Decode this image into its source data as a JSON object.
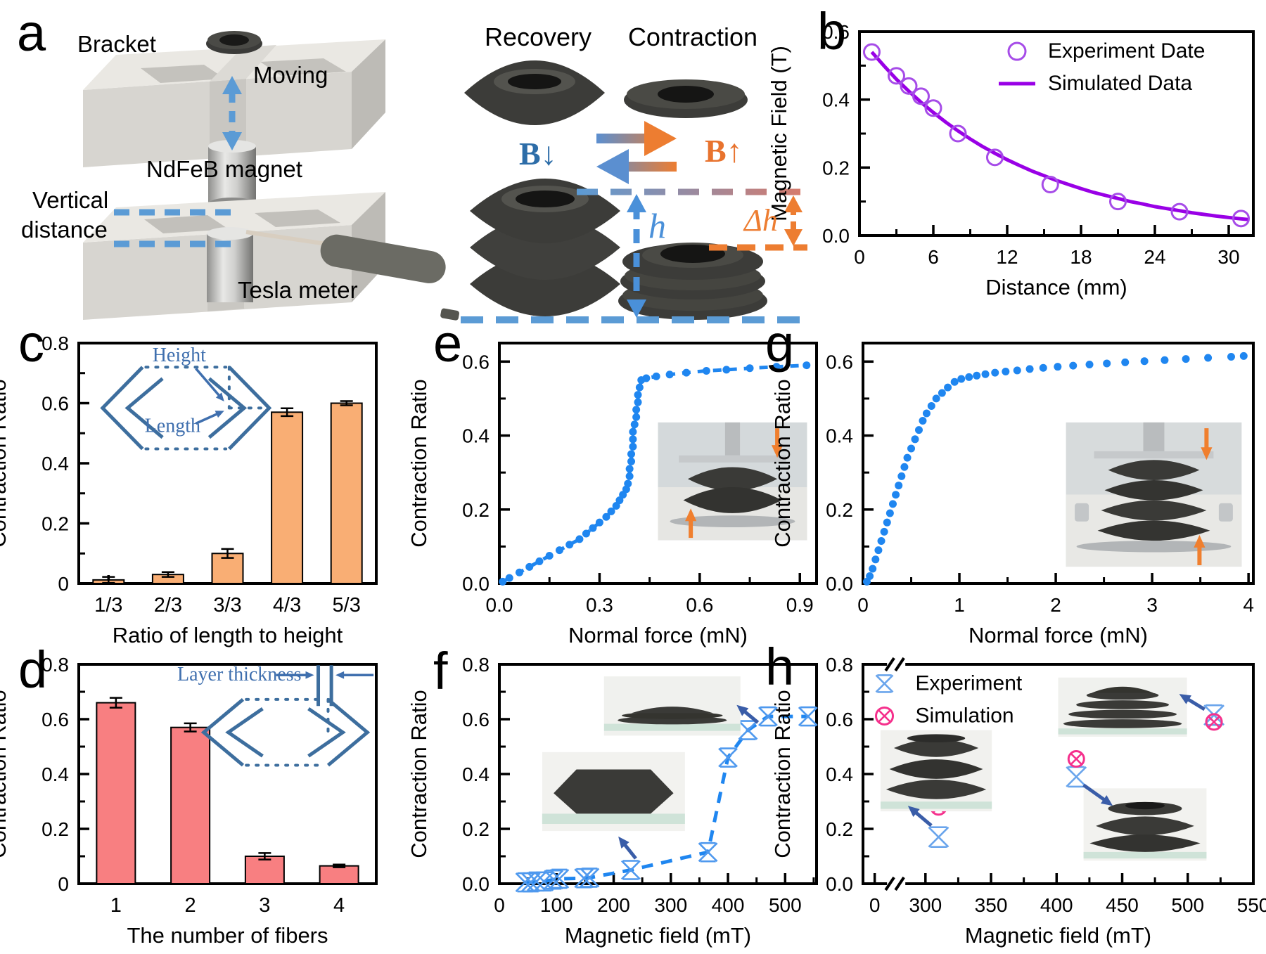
{
  "figure": {
    "letters": {
      "a": "a",
      "b": "b",
      "c": "c",
      "d": "d",
      "e": "e",
      "f": "f",
      "g": "g",
      "h": "h"
    },
    "panel_a": {
      "bracket": "Bracket",
      "moving": "Moving",
      "magnet": "NdFeB magnet",
      "vertical_line1": "Vertical",
      "vertical_line2": "distance",
      "tesla": "Tesla meter",
      "recovery": "Recovery",
      "contraction": "Contraction",
      "b_down": "B↓",
      "b_up": "B↑",
      "h": "h",
      "delta_h": "Δh"
    },
    "colors": {
      "blue_dash": "#5b9bd5",
      "orange": "#ed7d31",
      "purple_line": "#9900e6",
      "scatter_blue": "#1f86f0",
      "experiment_blue": "#6aa5ec",
      "simulation_pink": "#f5308c",
      "bar_orange": "#f9ae74",
      "bar_red": "#f87f81",
      "inset_steel_blue": "#3d6e9e"
    }
  },
  "chart_data": [
    {
      "id": "b",
      "type": "line",
      "xlabel": "Distance (mm)",
      "ylabel": "Magnetic Field (T)",
      "xlim": [
        0,
        32
      ],
      "ylim": [
        0,
        0.6
      ],
      "xticks": [
        0,
        6,
        12,
        18,
        24,
        30
      ],
      "xtick_labels": [
        "0",
        "6",
        "12",
        "18",
        "24",
        "30"
      ],
      "xminor": [
        3,
        9,
        15,
        21,
        27
      ],
      "yticks": [
        0,
        0.2,
        0.4,
        0.6
      ],
      "ytick_labels": [
        "0.0",
        "0.2",
        "0.4",
        "0.6"
      ],
      "yminor": [
        0.1,
        0.3,
        0.5
      ],
      "legend": {
        "fx": 0.4,
        "fy": 0.045,
        "items": [
          {
            "marker": "circle-open",
            "color": "#a64ce8",
            "label": "Experiment Date"
          },
          {
            "marker": "line",
            "color": "#9900e6",
            "label": "Simulated Data"
          }
        ]
      },
      "series": [
        {
          "name": "Simulated Data",
          "kind": "line",
          "color": "#9900e6",
          "width": 5,
          "x": [
            1,
            2,
            3,
            4,
            5,
            6,
            7,
            8,
            9,
            10,
            11,
            12,
            13,
            14,
            15,
            16,
            17,
            18,
            19,
            20,
            21,
            22,
            23,
            24,
            25,
            26,
            27,
            28,
            29,
            30,
            31,
            31.6
          ],
          "y": [
            0.54,
            0.499,
            0.46,
            0.425,
            0.392,
            0.362,
            0.334,
            0.308,
            0.284,
            0.262,
            0.242,
            0.223,
            0.206,
            0.19,
            0.176,
            0.162,
            0.15,
            0.138,
            0.127,
            0.118,
            0.109,
            0.1,
            0.093,
            0.085,
            0.079,
            0.073,
            0.067,
            0.062,
            0.057,
            0.053,
            0.049,
            0.047
          ]
        },
        {
          "name": "Experiment Date",
          "kind": "scatter",
          "marker": "circle-open",
          "color": "#a64ce8",
          "size": 11,
          "x": [
            1,
            3,
            4,
            5,
            6,
            8,
            11,
            15.5,
            21,
            26,
            31
          ],
          "y": [
            0.54,
            0.47,
            0.44,
            0.41,
            0.375,
            0.3,
            0.23,
            0.15,
            0.1,
            0.07,
            0.05
          ]
        }
      ]
    },
    {
      "id": "c",
      "type": "bar",
      "xlabel": "Ratio of length to height",
      "ylabel": "Contraction Ratio",
      "ylim": [
        0,
        0.8
      ],
      "yticks": [
        0,
        0.2,
        0.4,
        0.6,
        0.8
      ],
      "ytick_labels": [
        "0",
        "0.2",
        "0.4",
        "0.6",
        "0.8"
      ],
      "yminor": [
        0.1,
        0.3,
        0.5,
        0.7
      ],
      "categories": [
        "1/3",
        "2/3",
        "3/3",
        "4/3",
        "5/3"
      ],
      "values": [
        0.012,
        0.03,
        0.1,
        0.57,
        0.6
      ],
      "errors": [
        0.01,
        0.008,
        0.015,
        0.013,
        0.007
      ],
      "bar_color": "#f9ae74",
      "inset": {
        "height_label": "Height",
        "length_label": "Length"
      }
    },
    {
      "id": "d",
      "type": "bar",
      "xlabel": "The number of fibers",
      "ylabel": "Contraction Ratio",
      "ylim": [
        0,
        0.8
      ],
      "yticks": [
        0,
        0.2,
        0.4,
        0.6,
        0.8
      ],
      "ytick_labels": [
        "0",
        "0.2",
        "0.4",
        "0.6",
        "0.8"
      ],
      "yminor": [
        0.1,
        0.3,
        0.5,
        0.7
      ],
      "categories": [
        "1",
        "2",
        "3",
        "4"
      ],
      "values": [
        0.66,
        0.57,
        0.1,
        0.065
      ],
      "errors": [
        0.018,
        0.015,
        0.012,
        0.005
      ],
      "bar_color": "#f87f81",
      "inset": {
        "label": "Layer thickness"
      }
    },
    {
      "id": "e",
      "type": "scatter",
      "xlabel": "Normal force (mN)",
      "ylabel": "Contraction Ratio",
      "xlim": [
        0,
        0.95
      ],
      "xticks": [
        0,
        0.3,
        0.6,
        0.9
      ],
      "xtick_labels": [
        "0.0",
        "0.3",
        "0.6",
        "0.9"
      ],
      "xminor": [
        0.15,
        0.45,
        0.75
      ],
      "ylim": [
        0,
        0.65
      ],
      "yticks": [
        0,
        0.2,
        0.4,
        0.6
      ],
      "ytick_labels": [
        "0.0",
        "0.2",
        "0.4",
        "0.6"
      ],
      "yminor": [
        0.1,
        0.3,
        0.5
      ],
      "series": [
        {
          "kind": "scatter-dashline",
          "marker": "dot",
          "color": "#1f86f0",
          "size": 5.5,
          "dash": "12 10",
          "width": 5,
          "x": [
            0.01,
            0.03,
            0.06,
            0.09,
            0.12,
            0.15,
            0.18,
            0.21,
            0.24,
            0.26,
            0.28,
            0.3,
            0.32,
            0.335,
            0.35,
            0.36,
            0.37,
            0.38,
            0.385,
            0.39,
            0.39,
            0.395,
            0.395,
            0.4,
            0.4,
            0.4,
            0.405,
            0.41,
            0.41,
            0.415,
            0.415,
            0.42,
            0.425,
            0.44,
            0.47,
            0.51,
            0.56,
            0.62,
            0.68,
            0.75,
            0.83,
            0.92
          ],
          "y": [
            0.005,
            0.015,
            0.03,
            0.045,
            0.06,
            0.075,
            0.09,
            0.105,
            0.12,
            0.135,
            0.15,
            0.165,
            0.18,
            0.195,
            0.21,
            0.225,
            0.24,
            0.255,
            0.27,
            0.29,
            0.31,
            0.33,
            0.35,
            0.37,
            0.39,
            0.41,
            0.43,
            0.45,
            0.47,
            0.49,
            0.51,
            0.53,
            0.55,
            0.555,
            0.56,
            0.565,
            0.57,
            0.575,
            0.578,
            0.582,
            0.586,
            0.59
          ]
        }
      ]
    },
    {
      "id": "f",
      "type": "scatter",
      "xlabel": "Magnetic field (mT)",
      "ylabel": "Contraction Ratio",
      "xlim": [
        0,
        555
      ],
      "xticks": [
        0,
        100,
        200,
        300,
        400,
        500
      ],
      "xtick_labels": [
        "0",
        "100",
        "200",
        "300",
        "400",
        "500"
      ],
      "xminor": [
        50,
        150,
        250,
        350,
        450,
        550
      ],
      "ylim": [
        0,
        0.8
      ],
      "yticks": [
        0,
        0.2,
        0.4,
        0.6,
        0.8
      ],
      "ytick_labels": [
        "0.0",
        "0.2",
        "0.4",
        "0.6",
        "0.8"
      ],
      "yminor": [
        0.1,
        0.3,
        0.5,
        0.7
      ],
      "series": [
        {
          "kind": "scatter-dashline",
          "marker": "xstar",
          "color": "#4f99ee",
          "size": 13,
          "dash": "16 12",
          "width": 5,
          "line_color": "#1f86f0",
          "x": [
            45,
            55,
            65,
            78,
            95,
            105,
            148,
            158,
            230,
            365,
            400,
            435,
            470,
            540
          ],
          "y": [
            0.005,
            0.005,
            0.008,
            0.008,
            0.015,
            0.018,
            0.02,
            0.022,
            0.05,
            0.115,
            0.46,
            0.56,
            0.61,
            0.61
          ]
        }
      ]
    },
    {
      "id": "g",
      "type": "scatter",
      "xlabel": "Normal force (mN)",
      "ylabel": "Contraction Ratio",
      "xlim": [
        0,
        4.05
      ],
      "xticks": [
        0,
        1,
        2,
        3,
        4
      ],
      "xtick_labels": [
        "0",
        "1",
        "2",
        "3",
        "4"
      ],
      "xminor": [
        0.5,
        1.5,
        2.5,
        3.5
      ],
      "ylim": [
        0,
        0.65
      ],
      "yticks": [
        0,
        0.2,
        0.4,
        0.6
      ],
      "ytick_labels": [
        "0.0",
        "0.2",
        "0.4",
        "0.6"
      ],
      "yminor": [
        0.1,
        0.3,
        0.5
      ],
      "series": [
        {
          "kind": "scatter",
          "marker": "dot",
          "color": "#1f86f0",
          "size": 5.5,
          "x": [
            0.04,
            0.07,
            0.1,
            0.13,
            0.16,
            0.19,
            0.22,
            0.25,
            0.28,
            0.31,
            0.34,
            0.37,
            0.4,
            0.43,
            0.46,
            0.5,
            0.54,
            0.58,
            0.62,
            0.66,
            0.71,
            0.76,
            0.82,
            0.88,
            0.95,
            1.02,
            1.1,
            1.18,
            1.27,
            1.37,
            1.48,
            1.6,
            1.73,
            1.87,
            2.02,
            2.18,
            2.35,
            2.53,
            2.72,
            2.92,
            3.13,
            3.35,
            3.58,
            3.82,
            3.95
          ],
          "y": [
            0.005,
            0.02,
            0.04,
            0.065,
            0.09,
            0.115,
            0.14,
            0.165,
            0.19,
            0.215,
            0.24,
            0.265,
            0.29,
            0.315,
            0.34,
            0.365,
            0.39,
            0.415,
            0.44,
            0.46,
            0.48,
            0.5,
            0.515,
            0.53,
            0.545,
            0.553,
            0.558,
            0.562,
            0.566,
            0.57,
            0.573,
            0.576,
            0.58,
            0.583,
            0.586,
            0.589,
            0.592,
            0.595,
            0.598,
            0.601,
            0.604,
            0.607,
            0.61,
            0.613,
            0.615
          ]
        }
      ]
    },
    {
      "id": "h",
      "type": "scatter",
      "xlabel": "Magnetic field (mT)",
      "ylabel": "Contraction Ratio",
      "xlim": [
        300,
        550
      ],
      "xbreak": {
        "zero_frac": 0.03,
        "start_frac": 0.16,
        "break_frac": 0.085
      },
      "xticks": [
        0,
        300,
        350,
        400,
        450,
        500,
        550
      ],
      "xtick_labels": [
        "0",
        "300",
        "350",
        "400",
        "450",
        "500",
        "550"
      ],
      "xminor": [
        325,
        375,
        425,
        475,
        525
      ],
      "ylim": [
        0,
        0.8
      ],
      "yticks": [
        0,
        0.2,
        0.4,
        0.6,
        0.8
      ],
      "ytick_labels": [
        "0.0",
        "0.2",
        "0.4",
        "0.6",
        "0.8"
      ],
      "yminor": [
        0.1,
        0.3,
        0.5,
        0.7
      ],
      "legend": {
        "fx": 0.055,
        "fy": 0.04,
        "items": [
          {
            "marker": "xstar",
            "color": "#6aa5ec",
            "label": "Experiment"
          },
          {
            "marker": "circle-x",
            "color": "#f5308c",
            "label": "Simulation"
          }
        ]
      },
      "series": [
        {
          "name": "Experiment",
          "kind": "scatter",
          "marker": "xstar",
          "color": "#6aa5ec",
          "size": 14,
          "x": [
            310,
            415,
            520
          ],
          "y": [
            0.17,
            0.39,
            0.615
          ]
        },
        {
          "name": "Simulation",
          "kind": "scatter",
          "marker": "circle-x",
          "color": "#f5308c",
          "size": 11,
          "x": [
            310,
            415,
            520
          ],
          "y": [
            0.28,
            0.455,
            0.59
          ]
        }
      ]
    }
  ]
}
